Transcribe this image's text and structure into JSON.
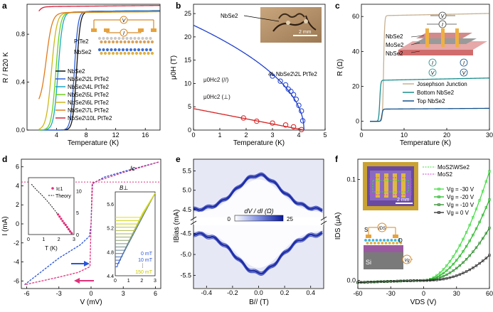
{
  "chart_data": [
    {
      "panel": "a",
      "type": "line",
      "xlabel": "Temperature (K)",
      "ylabel": "R / R20 K",
      "xlim": [
        0,
        18
      ],
      "ylim": [
        0,
        1.05
      ],
      "xticks": [
        4,
        8,
        12,
        16
      ],
      "yticks": [
        0.0,
        0.4,
        0.8
      ],
      "inset_labels": [
        "PtTe2",
        "NbSe2"
      ],
      "series": [
        {
          "name": "NbSe2",
          "color": "#111111",
          "tc": 6.7,
          "tw": 0.25,
          "y0": 0.0,
          "ynorm": 0.99
        },
        {
          "name": "NbSe2\\2L PtTe2",
          "color": "#2d5fd8",
          "tc": 6.4,
          "tw": 0.25,
          "y0": 0.0,
          "ynorm": 0.99
        },
        {
          "name": "NbSe2\\4L PtTe2",
          "color": "#18a7c4",
          "tc": 4.2,
          "tw": 0.3,
          "y0": 0.0,
          "ynorm": 0.985
        },
        {
          "name": "NbSe2\\5L PtTe2",
          "color": "#6cd11e",
          "tc": 3.9,
          "tw": 0.3,
          "y0": 0.0,
          "ynorm": 0.98
        },
        {
          "name": "NbSe2\\6L PtTe2",
          "color": "#cfb61a",
          "tc": 3.3,
          "tw": 0.35,
          "y0": 0.0,
          "ynorm": 0.98
        },
        {
          "name": "NbSe2\\7L PtTe2",
          "color": "#e07a1c",
          "tc": 2.6,
          "tw": 0.4,
          "y0": 0.2,
          "ynorm": 0.98
        },
        {
          "name": "NbSe2\\10L PtTe2",
          "color": "#d81f3a",
          "tc": 1.4,
          "tw": 0.3,
          "y0": 0.92,
          "ynorm": 1.03
        }
      ]
    },
    {
      "panel": "b",
      "type": "scatter",
      "xlabel": "Temperature (K)",
      "ylabel": "μ0H (T)",
      "xlim": [
        0,
        5
      ],
      "ylim": [
        0,
        27
      ],
      "xticks": [
        0,
        1,
        2,
        3,
        4,
        5
      ],
      "yticks": [
        0,
        5,
        10,
        15,
        20,
        25
      ],
      "annotations": [
        "NbSe2",
        "2 mm",
        "4L NbSe2\\2L PtTe2"
      ],
      "series": [
        {
          "name": "μ0Hc2 (//)",
          "color": "#1f3fcf",
          "tc": 4.2,
          "h0": 22.5,
          "exponent": 0.5,
          "points": [
            [
              3.0,
              11.6
            ],
            [
              3.3,
              10.5
            ],
            [
              3.5,
              9.7
            ],
            [
              3.6,
              8.8
            ],
            [
              3.7,
              8.3
            ],
            [
              3.8,
              7.6
            ],
            [
              3.9,
              6.6
            ],
            [
              4.0,
              5.3
            ],
            [
              4.1,
              4.1
            ],
            [
              4.15,
              2.0
            ]
          ]
        },
        {
          "name": "μ0Hc2 (⊥)",
          "color": "#d62222",
          "tc": 4.2,
          "h0": 4.6,
          "exponent": 1,
          "points": [
            [
              1.9,
              2.6
            ],
            [
              2.4,
              1.9
            ],
            [
              3.0,
              1.5
            ],
            [
              3.5,
              1.1
            ],
            [
              3.8,
              0.7
            ],
            [
              4.1,
              0.1
            ]
          ]
        }
      ]
    },
    {
      "panel": "c",
      "type": "line",
      "xlabel": "Temperature (K)",
      "ylabel": "R (Ω)",
      "xlim": [
        0,
        30
      ],
      "ylim": [
        -5,
        67
      ],
      "xticks": [
        0,
        10,
        20,
        30
      ],
      "yticks": [
        0,
        20,
        40,
        60
      ],
      "inset_labels": [
        "NbSe2",
        "MoSe2",
        "NbSe2"
      ],
      "series": [
        {
          "name": "Josephson Junction",
          "color": "#c8b090",
          "tc": 5.2,
          "r0": 0.0,
          "rn": 60.5,
          "slope": 0.2
        },
        {
          "name": "Bottom NbSe2",
          "color": "#1a8e8e",
          "tc": 4.3,
          "r0": 0.0,
          "rn": 23.5,
          "slope": 0.2
        },
        {
          "name": "Top NbSe2",
          "color": "#14518a",
          "tc": 4.8,
          "r0": 0.0,
          "rn": 7.0,
          "slope": 0.07
        }
      ]
    },
    {
      "panel": "d",
      "type": "line",
      "xlabel": "V (mV)",
      "ylabel": "I (mA)",
      "xlim": [
        -6.5,
        6.5
      ],
      "ylim": [
        -6.8,
        6.8
      ],
      "xticks": [
        -6,
        -3,
        0,
        3,
        6
      ],
      "yticks": [
        -6,
        -4,
        -2,
        0,
        2,
        4,
        6
      ],
      "annotations": [
        "Ic"
      ],
      "inset1": {
        "xlabel": "T (K)",
        "xlim": [
          0,
          3
        ],
        "ylim": [
          0,
          13
        ],
        "xticks": [
          0,
          1,
          2,
          3
        ],
        "yticks": [
          0,
          5,
          10
        ],
        "legend": [
          "Ic1",
          "Theory"
        ],
        "points": [
          [
            1.95,
            4.6
          ],
          [
            2.05,
            4.1
          ],
          [
            2.15,
            3.6
          ],
          [
            2.25,
            3.1
          ],
          [
            2.35,
            2.6
          ],
          [
            2.45,
            2.2
          ],
          [
            2.55,
            1.7
          ],
          [
            2.65,
            1.2
          ],
          [
            2.75,
            0.7
          ],
          [
            2.85,
            0.3
          ]
        ],
        "theory": [
          [
            0.2,
            11.5
          ],
          [
            0.5,
            10.3
          ],
          [
            0.8,
            9.3
          ],
          [
            1.1,
            8.2
          ],
          [
            1.4,
            7.0
          ],
          [
            1.7,
            5.7
          ],
          [
            2.0,
            4.3
          ],
          [
            2.3,
            2.9
          ],
          [
            2.6,
            1.5
          ],
          [
            2.9,
            0.2
          ]
        ]
      },
      "inset2": {
        "title": "B⊥",
        "xlim": [
          0,
          3
        ],
        "ylim": [
          4.4,
          5.8
        ],
        "xticks": [
          0,
          1,
          2,
          3
        ],
        "yticks": [
          4.4,
          4.8,
          5.2,
          5.6
        ],
        "labels": [
          "0 mT",
          "10 mT",
          "⋮",
          "150 mT"
        ]
      }
    },
    {
      "panel": "e",
      "type": "heatmap",
      "xlabel": "B// (T)",
      "ylabel": "IBias (mA)",
      "xlim": [
        -0.5,
        0.5
      ],
      "xticks": [
        -0.4,
        -0.2,
        0,
        0.2,
        0.4
      ],
      "yticks_top": [
        4.5,
        5.0,
        5.5
      ],
      "yticks_bottom": [
        -5.5,
        -5.0,
        -4.5
      ],
      "colorbar": {
        "label": "dV / dI (Ω)",
        "min": 0,
        "max": 25
      }
    },
    {
      "panel": "f",
      "type": "line",
      "xlabel": "VDS (V)",
      "ylabel": "IDS (μA)",
      "xlim": [
        -60,
        60
      ],
      "ylim": [
        -0.008,
        0.12
      ],
      "xticks": [
        -60,
        -30,
        0,
        30,
        60
      ],
      "yticks": [
        0.0,
        0.1
      ],
      "annotations": [
        "2 mm",
        "S",
        "D",
        "IDS",
        "Vg",
        "Si"
      ],
      "legend_devices": [
        "MoS2\\WSe2",
        "MoS2"
      ],
      "series": [
        {
          "name": "Vg = -30 V",
          "color": "#3ddc3d",
          "a": 0.108,
          "k": 1.9
        },
        {
          "name": "Vg = -20 V",
          "color": "#23b823",
          "a": 0.08,
          "k": 2.0
        },
        {
          "name": "Vg = -10 V",
          "color": "#2a8c2a",
          "a": 0.052,
          "k": 2.1
        },
        {
          "name": "Vg = 0 V",
          "color": "#2a2a2a",
          "a": 0.025,
          "k": 2.4
        }
      ]
    }
  ],
  "panel_letters": [
    "a",
    "b",
    "c",
    "d",
    "e",
    "f"
  ]
}
